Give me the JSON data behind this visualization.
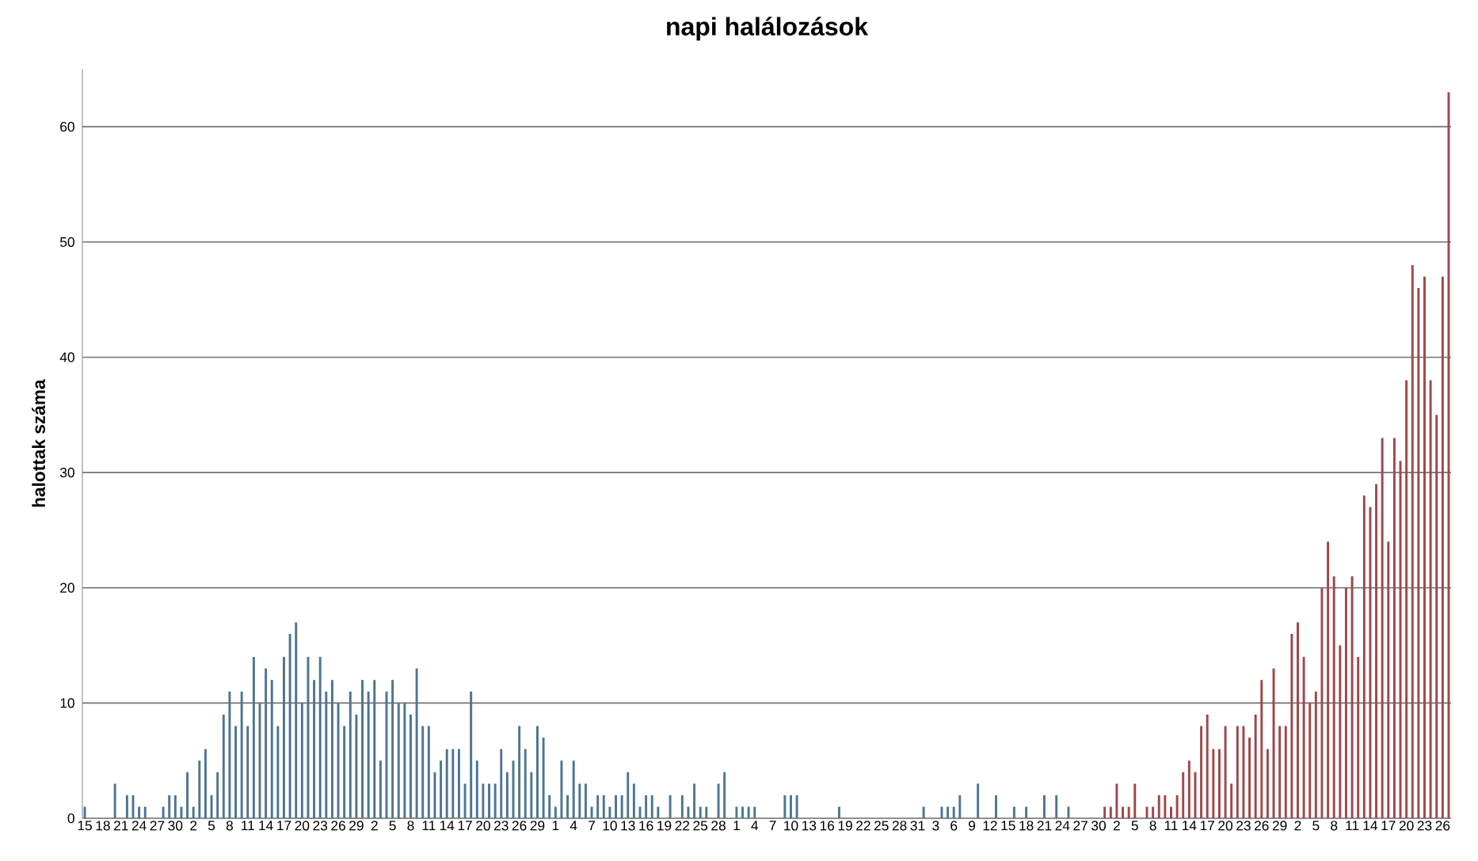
{
  "chart_data": {
    "type": "bar",
    "title": "napi halálozások",
    "ylabel": "halottak száma",
    "categories": [
      "15",
      null,
      null,
      "18",
      null,
      null,
      "21",
      null,
      null,
      "24",
      null,
      null,
      "27",
      null,
      null,
      "30",
      null,
      null,
      "2",
      null,
      null,
      "5",
      null,
      null,
      "8",
      null,
      null,
      "11",
      null,
      null,
      "14",
      null,
      null,
      "17",
      null,
      null,
      "20",
      null,
      null,
      "23",
      null,
      null,
      "26",
      null,
      null,
      "29",
      null,
      null,
      "2",
      null,
      null,
      "5",
      null,
      null,
      "8",
      null,
      null,
      "11",
      null,
      null,
      "14",
      null,
      null,
      "17",
      null,
      null,
      "20",
      null,
      null,
      "23",
      null,
      null,
      "26",
      null,
      null,
      "29",
      null,
      null,
      "1",
      null,
      null,
      "4",
      null,
      null,
      "7",
      null,
      null,
      "10",
      null,
      null,
      "13",
      null,
      null,
      "16",
      null,
      null,
      "19",
      null,
      null,
      "22",
      null,
      null,
      "25",
      null,
      null,
      "28",
      null,
      null,
      "1",
      null,
      null,
      "4",
      null,
      null,
      "7",
      null,
      null,
      "10",
      null,
      null,
      "13",
      null,
      null,
      "16",
      null,
      null,
      "19",
      null,
      null,
      "22",
      null,
      null,
      "25",
      null,
      null,
      "28",
      null,
      null,
      "31",
      null,
      null,
      "3",
      null,
      null,
      "6",
      null,
      null,
      "9",
      null,
      null,
      "12",
      null,
      null,
      "15",
      null,
      null,
      "18",
      null,
      null,
      "21",
      null,
      null,
      "24",
      null,
      null,
      "27",
      null,
      null,
      "30",
      null,
      null,
      "2",
      null,
      null,
      "5",
      null,
      null,
      "8",
      null,
      null,
      "11",
      null,
      null,
      "14",
      null,
      null,
      "17",
      null,
      null,
      "20",
      null,
      null,
      "23",
      null,
      null,
      "26",
      null,
      null,
      "29",
      null,
      null,
      "2",
      null,
      null,
      "5",
      null,
      null,
      "8",
      null,
      null,
      "11",
      null,
      null,
      "14",
      null,
      null,
      "17",
      null,
      null,
      "20",
      null,
      null,
      "23",
      null,
      null,
      "26",
      null
    ],
    "values": [
      1,
      0,
      0,
      0,
      0,
      3,
      0,
      2,
      2,
      1,
      1,
      0,
      0,
      1,
      2,
      2,
      1,
      4,
      1,
      5,
      6,
      2,
      4,
      9,
      11,
      8,
      11,
      8,
      14,
      10,
      13,
      12,
      8,
      14,
      16,
      17,
      10,
      14,
      12,
      14,
      11,
      12,
      10,
      8,
      11,
      9,
      12,
      11,
      12,
      5,
      11,
      12,
      10,
      10,
      9,
      13,
      8,
      8,
      4,
      5,
      6,
      6,
      6,
      3,
      11,
      5,
      3,
      3,
      3,
      6,
      4,
      5,
      8,
      6,
      4,
      8,
      7,
      2,
      1,
      5,
      2,
      5,
      3,
      3,
      1,
      2,
      2,
      1,
      2,
      2,
      4,
      3,
      1,
      2,
      2,
      1,
      0,
      2,
      0,
      2,
      1,
      3,
      1,
      1,
      0,
      3,
      4,
      0,
      1,
      1,
      1,
      1,
      0,
      0,
      0,
      0,
      2,
      2,
      2,
      0,
      0,
      0,
      0,
      0,
      0,
      1,
      0,
      0,
      0,
      0,
      0,
      0,
      0,
      0,
      0,
      0,
      0,
      0,
      0,
      1,
      0,
      0,
      1,
      1,
      1,
      2,
      0,
      0,
      3,
      0,
      0,
      2,
      0,
      0,
      1,
      0,
      1,
      0,
      0,
      2,
      0,
      2,
      0,
      1,
      0,
      0,
      0,
      0,
      0,
      1,
      1,
      3,
      1,
      1,
      3,
      0,
      1,
      1,
      2,
      2,
      1,
      2,
      4,
      5,
      4,
      8,
      9,
      6,
      6,
      8,
      3,
      8,
      8,
      7,
      9,
      12,
      6,
      13,
      8,
      8,
      16,
      17,
      14,
      10,
      11,
      20,
      24,
      21,
      15,
      20,
      21,
      14,
      28,
      27,
      29,
      33,
      24,
      33,
      31,
      38,
      48,
      46,
      47,
      38,
      35,
      47,
      63
    ],
    "colors": [
      "#4e7592",
      "#4e7592",
      "#4e7592",
      "#4e7592",
      "#4e7592",
      "#4e7592",
      "#4e7592",
      "#4e7592",
      "#4e7592",
      "#4e7592",
      "#4e7592",
      "#4e7592",
      "#4e7592",
      "#4e7592",
      "#4e7592",
      "#4e7592",
      "#4e7592",
      "#4e7592",
      "#4e7592",
      "#4e7592",
      "#4e7592",
      "#4e7592",
      "#4e7592",
      "#4e7592",
      "#4e7592",
      "#4e7592",
      "#4e7592",
      "#4e7592",
      "#4e7592",
      "#4e7592",
      "#4e7592",
      "#4e7592",
      "#4e7592",
      "#4e7592",
      "#4e7592",
      "#4e7592",
      "#4e7592",
      "#4e7592",
      "#4e7592",
      "#4e7592",
      "#4e7592",
      "#4e7592",
      "#4e7592",
      "#4e7592",
      "#4e7592",
      "#4e7592",
      "#4e7592",
      "#4e7592",
      "#4e7592",
      "#4e7592",
      "#4e7592",
      "#4e7592",
      "#4e7592",
      "#4e7592",
      "#4e7592",
      "#4e7592",
      "#4e7592",
      "#4e7592",
      "#4e7592",
      "#4e7592",
      "#4e7592",
      "#4e7592",
      "#4e7592",
      "#4e7592",
      "#4e7592",
      "#4e7592",
      "#4e7592",
      "#4e7592",
      "#4e7592",
      "#4e7592",
      "#4e7592",
      "#4e7592",
      "#4e7592",
      "#4e7592",
      "#4e7592",
      "#4e7592",
      "#4e7592",
      "#4e7592",
      "#4e7592",
      "#4e7592",
      "#4e7592",
      "#4e7592",
      "#4e7592",
      "#4e7592",
      "#4e7592",
      "#4e7592",
      "#4e7592",
      "#4e7592",
      "#4e7592",
      "#4e7592",
      "#4e7592",
      "#4e7592",
      "#4e7592",
      "#4e7592",
      "#4e7592",
      "#4e7592",
      "#4e7592",
      "#4e7592",
      "#4e7592",
      "#4e7592",
      "#4e7592",
      "#4e7592",
      "#4e7592",
      "#4e7592",
      "#4e7592",
      "#4e7592",
      "#4e7592",
      "#4e7592",
      "#4e7592",
      "#4e7592",
      "#4e7592",
      "#4e7592",
      "#4e7592",
      "#4e7592",
      "#4e7592",
      "#4e7592",
      "#4e7592",
      "#4e7592",
      "#4e7592",
      "#4e7592",
      "#4e7592",
      "#4e7592",
      "#4e7592",
      "#4e7592",
      "#4e7592",
      "#4e7592",
      "#4e7592",
      "#4e7592",
      "#4e7592",
      "#4e7592",
      "#4e7592",
      "#4e7592",
      "#4e7592",
      "#4e7592",
      "#4e7592",
      "#4e7592",
      "#4e7592",
      "#4e7592",
      "#4e7592",
      "#4e7592",
      "#4e7592",
      "#4e7592",
      "#4e7592",
      "#4e7592",
      "#4e7592",
      "#4e7592",
      "#4e7592",
      "#4e7592",
      "#4e7592",
      "#4e7592",
      "#4e7592",
      "#4e7592",
      "#4e7592",
      "#4e7592",
      "#4e7592",
      "#4e7592",
      "#4e7592",
      "#4e7592",
      "#4e7592",
      "#4e7592",
      "#4e7592",
      "#4e7592",
      "#4e7592",
      "#4e7592",
      "#4e7592",
      "#4e7592",
      "#4e7592",
      "#4e7592",
      "#4e7592",
      "#a0474a",
      "#a0474a",
      "#a0474a",
      "#a0474a",
      "#a0474a",
      "#a0474a",
      "#a0474a",
      "#a0474a",
      "#a0474a",
      "#a0474a",
      "#a0474a",
      "#a0474a",
      "#a0474a",
      "#a0474a",
      "#a0474a",
      "#a0474a",
      "#a0474a",
      "#a0474a",
      "#a0474a",
      "#a0474a",
      "#a0474a",
      "#a0474a",
      "#a0474a",
      "#a0474a",
      "#a0474a",
      "#a0474a",
      "#a0474a",
      "#a0474a",
      "#a0474a",
      "#a0474a",
      "#a0474a",
      "#a0474a",
      "#a0474a",
      "#a0474a",
      "#a0474a",
      "#a0474a",
      "#a0474a",
      "#a0474a",
      "#a0474a",
      "#a0474a",
      "#a0474a",
      "#a0474a",
      "#a0474a",
      "#a0474a",
      "#a0474a",
      "#a0474a",
      "#a0474a",
      "#a0474a",
      "#a0474a",
      "#a0474a",
      "#a0474a",
      "#a0474a",
      "#a0474a",
      "#a0474a",
      "#a0474a",
      "#a0474a",
      "#a0474a",
      "#a0474a"
    ],
    "ylim": [
      0,
      65
    ],
    "yticks": [
      0,
      10,
      20,
      30,
      40,
      50,
      60
    ],
    "grid": "y"
  }
}
